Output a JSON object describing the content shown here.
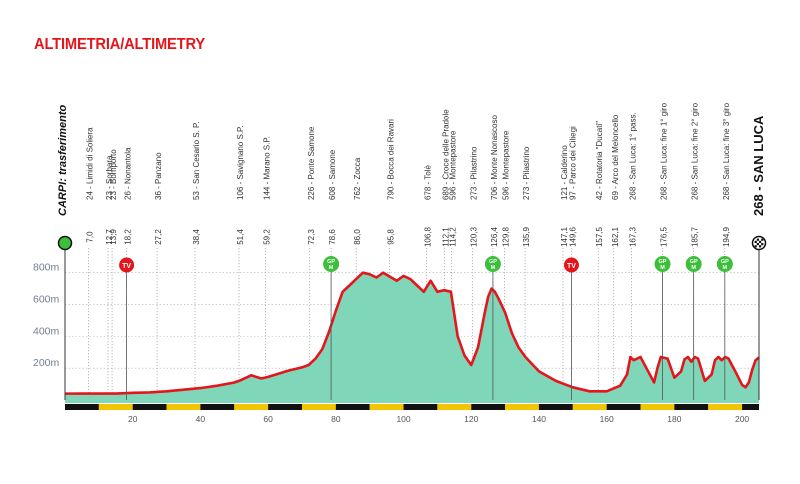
{
  "title": "ALTIMETRIA/ALTIMETRY",
  "colors": {
    "title": "#e4161b",
    "profile_line": "#e4161b",
    "profile_fill": "#7fd6b8",
    "gpm": "#3cbf3a",
    "tv": "#e4161b",
    "km_bar_yellow": "#f2c500",
    "km_bar_black": "#111111"
  },
  "chart_data": {
    "type": "area",
    "xlabel": "",
    "ylabel": "",
    "xlim": [
      0,
      205
    ],
    "ylim": [
      0,
      880
    ],
    "x_ticks": [
      20,
      40,
      60,
      80,
      100,
      120,
      140,
      160,
      180,
      200
    ],
    "y_ticks": [
      200,
      400,
      600,
      800
    ],
    "y_tick_labels": [
      "200m",
      "400m",
      "600m",
      "800m"
    ],
    "grid": true,
    "start": {
      "label": "CARPI: trasferimento"
    },
    "finish": {
      "label": "268 - SAN LUCA"
    },
    "waypoints": [
      {
        "km": "7,0",
        "name": "24 - Limidi di Soliera",
        "x": 7.0
      },
      {
        "km": "12,7",
        "name": "23 - Sorbara",
        "x": 12.7
      },
      {
        "km": "13,9",
        "name": "23 - Bomporto",
        "x": 13.9
      },
      {
        "km": "18,2",
        "name": "26 - Nonantola",
        "x": 18.2
      },
      {
        "km": "27,2",
        "name": "36 - Panzano",
        "x": 27.2
      },
      {
        "km": "38,4",
        "name": "53 - San Cesario S. P.",
        "x": 38.4
      },
      {
        "km": "51,4",
        "name": "106 - Savignano S.P.",
        "x": 51.4
      },
      {
        "km": "59,2",
        "name": "144 - Marano S.P.",
        "x": 59.2
      },
      {
        "km": "72,3",
        "name": "226 - Ponte Samone",
        "x": 72.3
      },
      {
        "km": "78,6",
        "name": "608 - Samone",
        "x": 78.6
      },
      {
        "km": "86,0",
        "name": "762 - Zocca",
        "x": 86.0
      },
      {
        "km": "95,8",
        "name": "790 - Bocca dei Ravari",
        "x": 95.8
      },
      {
        "km": "106,8",
        "name": "678 - Tolè",
        "x": 106.8
      },
      {
        "km": "112,1",
        "name": "689 - Croce delle Pradole",
        "x": 112.1
      },
      {
        "km": "114,2",
        "name": "596 - Montepastore",
        "x": 114.2
      },
      {
        "km": "120,3",
        "name": "273 - Pilastrino",
        "x": 120.3
      },
      {
        "km": "126,4",
        "name": "706 - Monte Nonascoso",
        "x": 126.4
      },
      {
        "km": "129,8",
        "name": "596 - Montepastore",
        "x": 129.8
      },
      {
        "km": "135,9",
        "name": "273 - Pilastrino",
        "x": 135.9
      },
      {
        "km": "147,1",
        "name": "121 - Calderino",
        "x": 147.1
      },
      {
        "km": "149,6",
        "name": "97 - Parco dei Ciliegi",
        "x": 149.6
      },
      {
        "km": "157,5",
        "name": "42 - Rotatoria \"Ducati\"",
        "x": 157.5
      },
      {
        "km": "162,1",
        "name": "69 - Arco del Meloncello",
        "x": 162.1
      },
      {
        "km": "167,3",
        "name": "268 - San Luca: 1° pass.",
        "x": 167.3
      },
      {
        "km": "176,5",
        "name": "268 - San Luca: fine 1° giro",
        "x": 176.5
      },
      {
        "km": "185,7",
        "name": "268 - San Luca: fine 2° giro",
        "x": 185.7
      },
      {
        "km": "194,9",
        "name": "268 - San Luca: fine 3° giro",
        "x": 194.9
      }
    ],
    "gpm_markers": [
      {
        "x": 78.6,
        "label": [
          "GP",
          "M"
        ]
      },
      {
        "x": 126.4,
        "label": [
          "GP",
          "M"
        ]
      },
      {
        "x": 176.5,
        "label": [
          "GP",
          "M"
        ]
      },
      {
        "x": 185.7,
        "label": [
          "GP",
          "M"
        ]
      },
      {
        "x": 194.9,
        "label": [
          "GP",
          "M"
        ]
      }
    ],
    "tv_markers": [
      {
        "x": 18.2,
        "label": "TV"
      },
      {
        "x": 149.6,
        "label": "TV"
      }
    ],
    "series": [
      {
        "x": [
          0,
          5,
          10,
          15,
          20,
          25,
          30,
          35,
          40,
          45,
          50,
          52,
          55,
          58,
          60,
          63,
          66,
          70,
          72,
          74,
          76,
          78,
          80,
          82,
          84,
          86,
          88,
          90,
          92,
          94,
          96,
          98,
          100,
          102,
          104,
          106,
          108,
          110,
          112,
          114,
          116,
          118,
          120,
          122,
          124,
          125,
          126,
          127,
          128,
          130,
          132,
          134,
          136,
          140,
          145,
          150,
          155,
          160,
          164,
          166,
          167,
          168,
          170,
          172,
          174,
          175,
          176,
          178,
          180,
          182,
          183,
          184,
          185,
          186,
          187,
          189,
          191,
          192,
          193,
          194,
          195,
          196,
          198,
          200,
          201,
          202,
          203,
          204,
          205
        ],
        "y": [
          40,
          40,
          40,
          40,
          45,
          48,
          55,
          65,
          75,
          90,
          110,
          125,
          155,
          135,
          145,
          165,
          185,
          205,
          220,
          260,
          320,
          430,
          560,
          680,
          720,
          760,
          800,
          790,
          770,
          800,
          775,
          750,
          780,
          760,
          720,
          680,
          750,
          680,
          690,
          680,
          400,
          280,
          220,
          330,
          550,
          650,
          700,
          680,
          640,
          550,
          420,
          330,
          270,
          180,
          120,
          80,
          55,
          55,
          90,
          160,
          270,
          250,
          270,
          190,
          110,
          200,
          270,
          260,
          140,
          180,
          255,
          270,
          240,
          270,
          260,
          120,
          160,
          250,
          270,
          250,
          270,
          260,
          180,
          95,
          80,
          110,
          190,
          250,
          268
        ]
      }
    ]
  }
}
